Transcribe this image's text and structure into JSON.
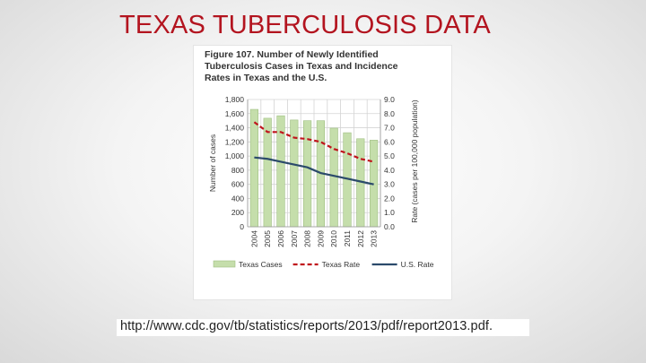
{
  "slide": {
    "title": "TEXAS TUBERCULOSIS DATA",
    "source_url": "http://www.cdc.gov/tb/statistics/reports/2013/pdf/report2013.pdf."
  },
  "chart_data": {
    "type": "bar",
    "title_lines": [
      "Figure 107. Number of Newly Identified",
      "Tuberculosis Cases in Texas and Incidence",
      "Rates in Texas and the U.S."
    ],
    "categories": [
      "2004",
      "2005",
      "2006",
      "2007",
      "2008",
      "2009",
      "2010",
      "2011",
      "2012",
      "2013"
    ],
    "ylabel": "Number of cases",
    "y2label": "Rate (cases per 100,000 population)",
    "ylim": [
      0,
      1800
    ],
    "y_ticks": [
      "0",
      "200",
      "400",
      "600",
      "800",
      "1,000",
      "1,200",
      "1,400",
      "1,600",
      "1,800"
    ],
    "y2lim": [
      0,
      9
    ],
    "y2_ticks": [
      "0.0",
      "1.0",
      "2.0",
      "3.0",
      "4.0",
      "5.0",
      "6.0",
      "7.0",
      "8.0",
      "9.0"
    ],
    "grid": true,
    "legend_position": "bottom",
    "series": [
      {
        "name": "Texas Cases",
        "kind": "bar",
        "axis": "left",
        "color": "#c5deab",
        "values": [
          1660,
          1535,
          1570,
          1510,
          1500,
          1500,
          1395,
          1330,
          1245,
          1225
        ]
      },
      {
        "name": "Texas Rate",
        "kind": "line",
        "axis": "right",
        "style": "dashed",
        "color": "#c0141c",
        "values": [
          7.4,
          6.7,
          6.7,
          6.3,
          6.2,
          6.0,
          5.5,
          5.2,
          4.8,
          4.6
        ]
      },
      {
        "name": "U.S. Rate",
        "kind": "line",
        "axis": "right",
        "style": "solid",
        "color": "#2b4a6b",
        "values": [
          4.9,
          4.8,
          4.6,
          4.4,
          4.2,
          3.8,
          3.6,
          3.4,
          3.2,
          3.0
        ]
      }
    ]
  }
}
